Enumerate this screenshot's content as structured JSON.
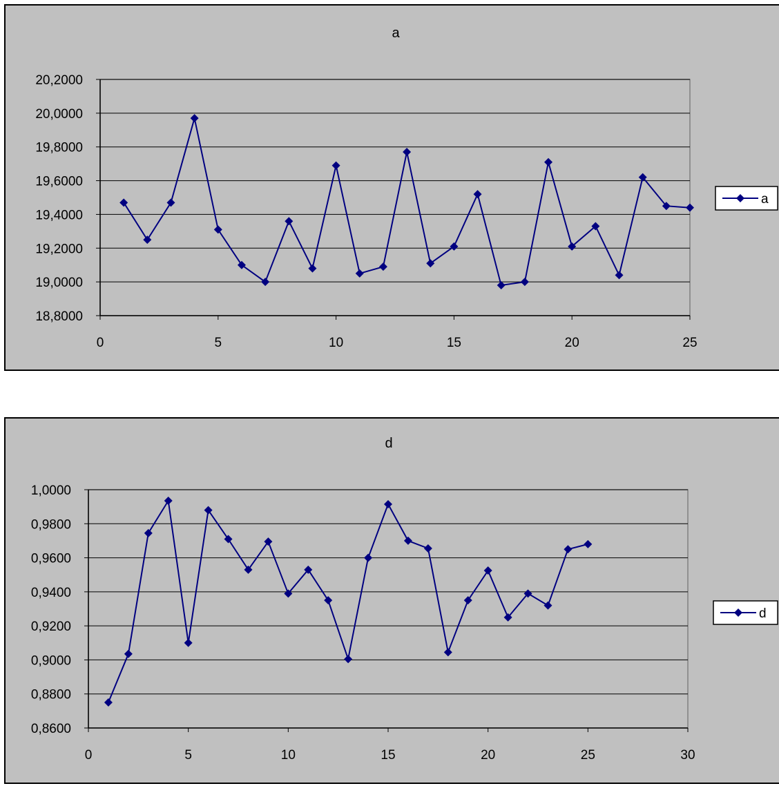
{
  "colors": {
    "background": "#c0c0c0",
    "line": "#000080",
    "grid": "#000000",
    "page": "#ffffff"
  },
  "chart_data": [
    {
      "type": "scatter",
      "title": "a",
      "xlabel": "",
      "ylabel": "",
      "xlim": [
        0,
        25
      ],
      "ylim": [
        18.8,
        20.2
      ],
      "x_ticks": [
        0,
        5,
        10,
        15,
        20,
        25
      ],
      "x_tick_labels": [
        "0",
        "5",
        "10",
        "15",
        "20",
        "25"
      ],
      "y_ticks": [
        18.8,
        19.0,
        19.2,
        19.4,
        19.6,
        19.8,
        20.0,
        20.2
      ],
      "y_tick_labels": [
        "18,8000",
        "19,0000",
        "19,2000",
        "19,4000",
        "19,6000",
        "19,8000",
        "20,0000",
        "20,2000"
      ],
      "grid": true,
      "legend_position": "right",
      "series": [
        {
          "name": "a",
          "marker": "diamond",
          "connected": true,
          "x": [
            1,
            2,
            3,
            4,
            5,
            6,
            7,
            8,
            9,
            10,
            11,
            12,
            13,
            14,
            15,
            16,
            17,
            18,
            19,
            20,
            21,
            22,
            23,
            24,
            25
          ],
          "y": [
            19.47,
            19.25,
            19.47,
            19.97,
            19.31,
            19.1,
            19.0,
            19.36,
            19.08,
            19.69,
            19.05,
            19.09,
            19.77,
            19.11,
            19.21,
            19.52,
            18.98,
            19.0,
            19.71,
            19.21,
            19.33,
            19.04,
            19.62,
            19.45,
            19.44
          ]
        }
      ]
    },
    {
      "type": "scatter",
      "title": "d",
      "xlabel": "",
      "ylabel": "",
      "xlim": [
        0,
        30
      ],
      "ylim": [
        0.86,
        1.0
      ],
      "x_ticks": [
        0,
        5,
        10,
        15,
        20,
        25,
        30
      ],
      "x_tick_labels": [
        "0",
        "5",
        "10",
        "15",
        "20",
        "25",
        "30"
      ],
      "y_ticks": [
        0.86,
        0.88,
        0.9,
        0.92,
        0.94,
        0.96,
        0.98,
        1.0
      ],
      "y_tick_labels": [
        "0,8600",
        "0,8800",
        "0,9000",
        "0,9200",
        "0,9400",
        "0,9600",
        "0,9800",
        "1,0000"
      ],
      "grid": true,
      "legend_position": "right",
      "series": [
        {
          "name": "d",
          "marker": "diamond",
          "connected": true,
          "x": [
            1,
            2,
            3,
            4,
            5,
            6,
            7,
            8,
            9,
            10,
            11,
            12,
            13,
            14,
            15,
            16,
            17,
            18,
            19,
            20,
            21,
            22,
            23,
            24,
            25
          ],
          "y": [
            0.875,
            0.9035,
            0.9745,
            0.9935,
            0.91,
            0.988,
            0.971,
            0.953,
            0.9695,
            0.939,
            0.953,
            0.935,
            0.9005,
            0.96,
            0.9915,
            0.97,
            0.9655,
            0.9045,
            0.935,
            0.9525,
            0.925,
            0.939,
            0.932,
            0.965,
            0.968
          ]
        }
      ]
    }
  ]
}
